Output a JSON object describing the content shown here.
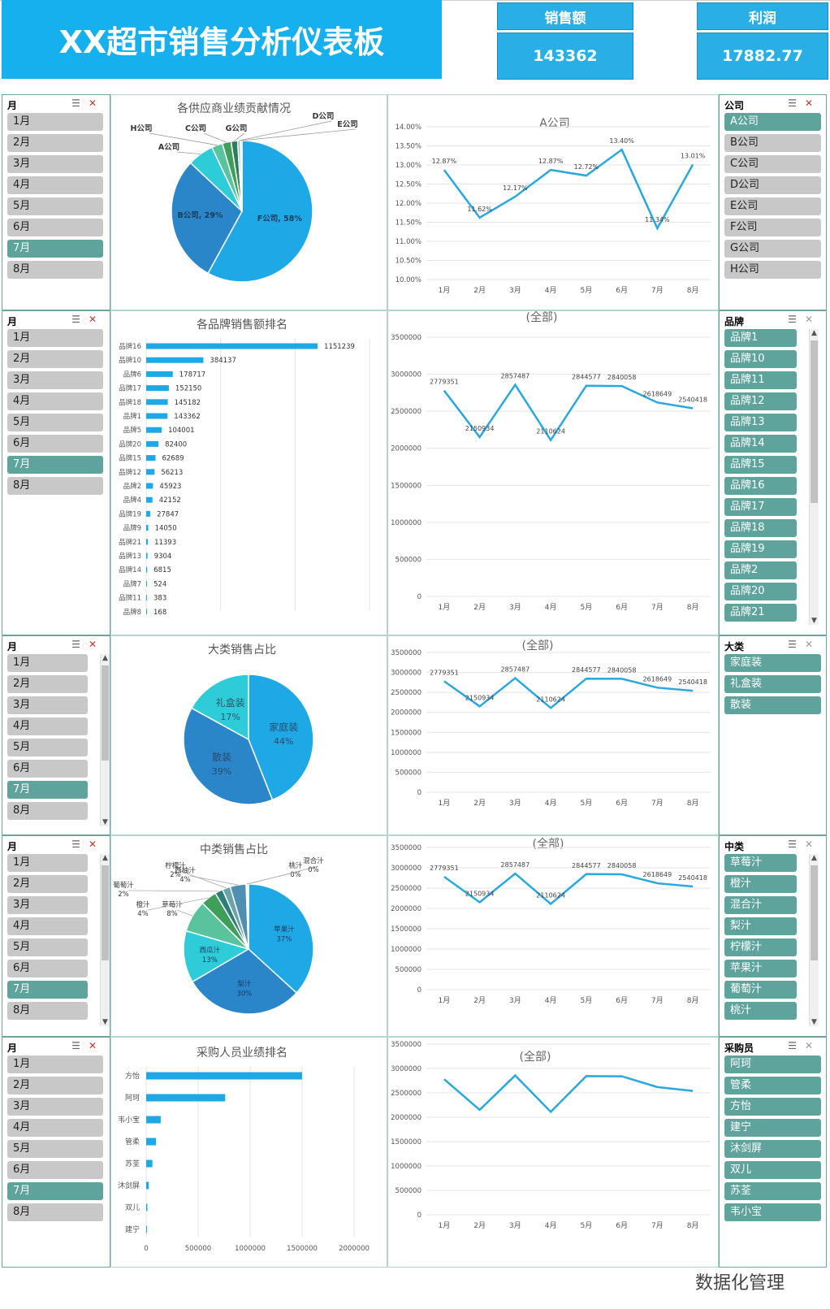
{
  "header": {
    "title": "XX超市销售分析仪表板",
    "kpis": [
      {
        "label": "销售额",
        "value": "143362"
      },
      {
        "label": "利润",
        "value": "17882.77"
      }
    ]
  },
  "months": [
    "1月",
    "2月",
    "3月",
    "4月",
    "5月",
    "6月",
    "7月",
    "8月"
  ],
  "selected_month": "7月",
  "slicers": {
    "month_label": "月",
    "company": {
      "label": "公司",
      "items": [
        "A公司",
        "B公司",
        "C公司",
        "D公司",
        "E公司",
        "F公司",
        "G公司",
        "H公司"
      ],
      "selected": "A公司"
    },
    "brand": {
      "label": "品牌",
      "items": [
        "品牌1",
        "品牌10",
        "品牌11",
        "品牌12",
        "品牌13",
        "品牌14",
        "品牌15",
        "品牌16",
        "品牌17",
        "品牌18",
        "品牌19",
        "品牌2",
        "品牌20",
        "品牌21"
      ]
    },
    "category": {
      "label": "大类",
      "items": [
        "家庭装",
        "礼盒装",
        "散装"
      ]
    },
    "subcategory": {
      "label": "中类",
      "items": [
        "草莓汁",
        "橙汁",
        "混合汁",
        "梨汁",
        "柠檬汁",
        "苹果汁",
        "葡萄汁",
        "桃汁"
      ]
    },
    "buyer": {
      "label": "采购员",
      "items": [
        "阿珂",
        "管柔",
        "方怡",
        "建宁",
        "沐剑屏",
        "双儿",
        "苏荃",
        "韦小宝"
      ]
    }
  },
  "icons": [
    "multi-select-icon",
    "clear-filter-icon",
    "scroll-up-icon",
    "scroll-down-icon"
  ],
  "colors": {
    "accent": "#16b0ee",
    "slicer_selected": "#5ea49c",
    "slicer_item": "#c8c8c8",
    "line": "#29a8e0"
  },
  "watermark": "数据化管理",
  "chart_data": [
    {
      "id": "supplier_pie",
      "type": "pie",
      "title": "各供应商业绩贡献情况",
      "labels": [
        "F公司",
        "B公司",
        "A公司",
        "H公司",
        "C公司",
        "G公司",
        "D公司",
        "E公司"
      ],
      "values": [
        58,
        29,
        6,
        2.5,
        2,
        1.5,
        0.6,
        0.4
      ],
      "data_labels": [
        "F公司, 58%",
        "B公司, 29%",
        "A公司",
        "H公司",
        "C公司",
        "G公司",
        "D公司",
        "E公司"
      ],
      "colors": [
        "#1ea9e6",
        "#2b86c9",
        "#2ecbd8",
        "#59c39d",
        "#3f9e5a",
        "#2f7d5c",
        "#8fb8c9",
        "#b9d8e6"
      ]
    },
    {
      "id": "company_line",
      "type": "line",
      "title": "A公司",
      "x": [
        "1月",
        "2月",
        "3月",
        "4月",
        "5月",
        "6月",
        "7月",
        "8月"
      ],
      "y": [
        12.87,
        11.62,
        12.17,
        12.87,
        12.72,
        13.4,
        11.34,
        13.01
      ],
      "data_labels": [
        "12.87%",
        "11.62%",
        "12.17%",
        "12.87%",
        "12.72%",
        "13.40%",
        "11.34%",
        "13.01%"
      ],
      "ylim": [
        10,
        14
      ],
      "yticks": [
        "10.00%",
        "10.50%",
        "11.00%",
        "11.50%",
        "12.00%",
        "12.50%",
        "13.00%",
        "13.50%",
        "14.00%"
      ]
    },
    {
      "id": "brand_bar",
      "type": "bar",
      "title": "各品牌销售额排名",
      "categories": [
        "品牌16",
        "品牌10",
        "品牌6",
        "品牌17",
        "品牌18",
        "品牌1",
        "品牌5",
        "品牌20",
        "品牌15",
        "品牌12",
        "品牌2",
        "品牌4",
        "品牌19",
        "品牌9",
        "品牌21",
        "品牌13",
        "品牌14",
        "品牌7",
        "品牌11",
        "品牌8"
      ],
      "values": [
        1151239,
        384137,
        178717,
        152150,
        145182,
        143362,
        104001,
        82400,
        62689,
        56213,
        45923,
        42152,
        27847,
        14050,
        11393,
        9304,
        6815,
        524,
        383,
        168
      ]
    },
    {
      "id": "brand_line",
      "type": "line",
      "title": "(全部)",
      "x": [
        "1月",
        "2月",
        "3月",
        "4月",
        "5月",
        "6月",
        "7月",
        "8月"
      ],
      "y": [
        2779351,
        2150934,
        2857487,
        2110624,
        2844577,
        2840058,
        2618649,
        2540418
      ],
      "ylim": [
        0,
        3500000
      ],
      "yticks": [
        "0",
        "500000",
        "1000000",
        "1500000",
        "2000000",
        "2500000",
        "3000000",
        "3500000"
      ]
    },
    {
      "id": "category_pie",
      "type": "pie",
      "title": "大类销售占比",
      "labels": [
        "家庭装",
        "散装",
        "礼盒装"
      ],
      "values": [
        44,
        39,
        17
      ],
      "percent_labels": [
        "44%",
        "39%",
        "17%"
      ],
      "colors": [
        "#1ea9e6",
        "#2b86c9",
        "#2ecbd8"
      ]
    },
    {
      "id": "category_line",
      "type": "line",
      "title": "(全部)",
      "x": [
        "1月",
        "2月",
        "3月",
        "4月",
        "5月",
        "6月",
        "7月",
        "8月"
      ],
      "y": [
        2779351,
        2150934,
        2857487,
        2110624,
        2844577,
        2840058,
        2618649,
        2540418
      ],
      "ylim": [
        0,
        3500000
      ],
      "yticks": [
        "0",
        "500000",
        "1000000",
        "1500000",
        "2000000",
        "2500000",
        "3000000",
        "3500000"
      ]
    },
    {
      "id": "subcategory_pie",
      "type": "pie",
      "title": "中类销售占比",
      "labels": [
        "苹果汁",
        "梨汁",
        "西瓜汁",
        "草莓汁",
        "橙汁",
        "葡萄汁",
        "柠檬汁",
        "西柚汁",
        "桃汁",
        "混合汁"
      ],
      "values": [
        37,
        30,
        13,
        8,
        4,
        2,
        2,
        4,
        0.3,
        0.3
      ],
      "percent_labels": [
        "37%",
        "30%",
        "13%",
        "8%",
        "4%",
        "2%",
        "2%",
        "4%",
        "0%",
        "0%"
      ],
      "label_texts": [
        "苹果汁",
        "梨汁",
        "西瓜汁",
        "草莓汁",
        "橙汁",
        "葡萄汁",
        "柠檬汁",
        "西柚汁",
        "桃汁",
        "混合汁"
      ],
      "colors": [
        "#1ea9e6",
        "#2b86c9",
        "#2ecbd8",
        "#59c39d",
        "#3f9e5a",
        "#2f7d7a",
        "#6aa3a8",
        "#4f8fb2",
        "#1d5e8c",
        "#173f66"
      ]
    },
    {
      "id": "subcategory_line",
      "type": "line",
      "title": "(全部)",
      "x": [
        "1月",
        "2月",
        "3月",
        "4月",
        "5月",
        "6月",
        "7月",
        "8月"
      ],
      "y": [
        2779351,
        2150934,
        2857487,
        2110624,
        2844577,
        2840058,
        2618649,
        2540418
      ],
      "ylim": [
        0,
        3500000
      ],
      "yticks": [
        "0",
        "500000",
        "1000000",
        "1500000",
        "2000000",
        "2500000",
        "3000000",
        "3500000"
      ]
    },
    {
      "id": "buyer_bar",
      "type": "bar",
      "title": "采购人员业绩排名",
      "categories": [
        "方怡",
        "阿珂",
        "韦小宝",
        "管柔",
        "苏荃",
        "沐剑屏",
        "双儿",
        "建宁"
      ],
      "values": [
        1500000,
        760000,
        140000,
        95000,
        60000,
        25000,
        12000,
        3000
      ],
      "xlim": [
        0,
        2000000
      ],
      "xticks": [
        "0",
        "500000",
        "1000000",
        "1500000",
        "2000000"
      ]
    },
    {
      "id": "buyer_line",
      "type": "line",
      "title": "(全部)",
      "x": [
        "1月",
        "2月",
        "3月",
        "4月",
        "5月",
        "6月",
        "7月",
        "8月"
      ],
      "y": [
        2779351,
        2150934,
        2857487,
        2110624,
        2844577,
        2840058,
        2618649,
        2540418
      ],
      "ylim": [
        0,
        3500000
      ],
      "yticks": [
        "0",
        "500000",
        "1000000",
        "1500000",
        "2000000",
        "2500000",
        "3000000",
        "3500000"
      ]
    }
  ]
}
